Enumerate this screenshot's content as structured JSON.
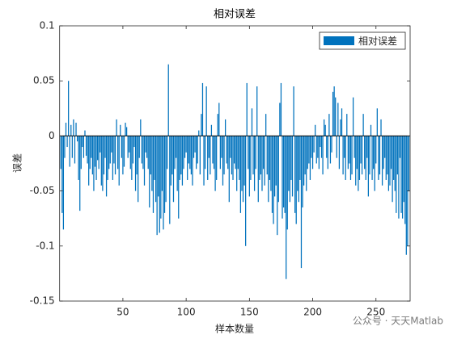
{
  "chart_data": {
    "type": "bar",
    "title": "相对误差",
    "xlabel": "样本数量",
    "ylabel": "误差",
    "legend": {
      "position": "upper right"
    },
    "watermark": "公众号 · 天天Matlab",
    "xlim": [
      0,
      277
    ],
    "xticks": [
      50,
      100,
      150,
      200,
      250
    ],
    "ylim": [
      -0.15,
      0.1
    ],
    "yticks": [
      -0.15,
      -0.1,
      -0.05,
      0,
      0.05,
      0.1
    ],
    "x": [
      1,
      2,
      3,
      4,
      5,
      6,
      7,
      8,
      9,
      10,
      11,
      12,
      13,
      14,
      15,
      16,
      17,
      18,
      19,
      20,
      21,
      22,
      23,
      24,
      25,
      26,
      27,
      28,
      29,
      30,
      31,
      32,
      33,
      34,
      35,
      36,
      37,
      38,
      39,
      40,
      41,
      42,
      43,
      44,
      45,
      46,
      47,
      48,
      49,
      50,
      51,
      52,
      53,
      54,
      55,
      56,
      57,
      58,
      59,
      60,
      61,
      62,
      63,
      64,
      65,
      66,
      67,
      68,
      69,
      70,
      71,
      72,
      73,
      74,
      75,
      76,
      77,
      78,
      79,
      80,
      81,
      82,
      83,
      84,
      85,
      86,
      87,
      88,
      89,
      90,
      91,
      92,
      93,
      94,
      95,
      96,
      97,
      98,
      99,
      100,
      101,
      102,
      103,
      104,
      105,
      106,
      107,
      108,
      109,
      110,
      111,
      112,
      113,
      114,
      115,
      116,
      117,
      118,
      119,
      120,
      121,
      122,
      123,
      124,
      125,
      126,
      127,
      128,
      129,
      130,
      131,
      132,
      133,
      134,
      135,
      136,
      137,
      138,
      139,
      140,
      141,
      142,
      143,
      144,
      145,
      146,
      147,
      148,
      149,
      150,
      151,
      152,
      153,
      154,
      155,
      156,
      157,
      158,
      159,
      160,
      161,
      162,
      163,
      164,
      165,
      166,
      167,
      168,
      169,
      170,
      171,
      172,
      173,
      174,
      175,
      176,
      177,
      178,
      179,
      180,
      181,
      182,
      183,
      184,
      185,
      186,
      187,
      188,
      189,
      190,
      191,
      192,
      193,
      194,
      195,
      196,
      197,
      198,
      199,
      200,
      201,
      202,
      203,
      204,
      205,
      206,
      207,
      208,
      209,
      210,
      211,
      212,
      213,
      214,
      215,
      216,
      217,
      218,
      219,
      220,
      221,
      222,
      223,
      224,
      225,
      226,
      227,
      228,
      229,
      230,
      231,
      232,
      233,
      234,
      235,
      236,
      237,
      238,
      239,
      240,
      241,
      242,
      243,
      244,
      245,
      246,
      247,
      248,
      249,
      250,
      251,
      252,
      253,
      254,
      255,
      256,
      257,
      258,
      259,
      260,
      261,
      262,
      263,
      264,
      265,
      266,
      267,
      268,
      269,
      270,
      271,
      272,
      273,
      274,
      275,
      276
    ],
    "series": [
      {
        "name": "相对误差",
        "color": "#0072bd",
        "values": [
          -0.03,
          -0.07,
          -0.085,
          -0.02,
          0.012,
          -0.01,
          0.05,
          -0.028,
          0.01,
          -0.02,
          0.015,
          -0.025,
          0.012,
          -0.005,
          -0.04,
          -0.068,
          -0.03,
          -0.01,
          -0.02,
          0.005,
          -0.018,
          -0.025,
          -0.045,
          -0.03,
          -0.02,
          -0.035,
          -0.05,
          -0.028,
          -0.04,
          -0.022,
          -0.03,
          -0.015,
          -0.045,
          -0.05,
          -0.035,
          -0.02,
          -0.055,
          -0.04,
          -0.03,
          -0.025,
          -0.015,
          -0.04,
          -0.025,
          -0.035,
          0.015,
          -0.03,
          -0.045,
          0.01,
          -0.02,
          -0.035,
          -0.028,
          0.012,
          0.008,
          -0.02,
          -0.015,
          -0.03,
          -0.04,
          -0.025,
          -0.01,
          -0.05,
          -0.035,
          -0.06,
          -0.02,
          0.015,
          -0.025,
          -0.03,
          -0.045,
          -0.015,
          -0.02,
          -0.03,
          -0.065,
          -0.035,
          -0.05,
          -0.07,
          -0.04,
          -0.06,
          -0.09,
          -0.055,
          -0.088,
          -0.075,
          -0.05,
          -0.085,
          -0.07,
          -0.06,
          -0.03,
          0.065,
          -0.08,
          -0.045,
          -0.035,
          -0.06,
          -0.03,
          -0.02,
          -0.05,
          -0.075,
          -0.04,
          -0.035,
          -0.045,
          -0.03,
          -0.02,
          -0.015,
          -0.04,
          -0.025,
          -0.03,
          -0.035,
          -0.045,
          -0.02,
          -0.015,
          -0.03,
          -0.025,
          0.005,
          -0.035,
          0.02,
          0.048,
          -0.045,
          -0.03,
          0.045,
          -0.04,
          -0.02,
          -0.035,
          0.01,
          -0.025,
          -0.03,
          -0.05,
          -0.04,
          0.02,
          0.03,
          -0.03,
          -0.02,
          -0.045,
          -0.035,
          0.015,
          -0.025,
          -0.03,
          -0.06,
          -0.02,
          -0.035,
          -0.04,
          -0.025,
          -0.03,
          -0.05,
          -0.03,
          -0.04,
          -0.07,
          -0.05,
          -0.06,
          -0.045,
          -0.1,
          0.048,
          -0.03,
          -0.055,
          -0.04,
          0.025,
          -0.035,
          -0.05,
          -0.03,
          0.045,
          -0.06,
          -0.04,
          -0.035,
          -0.05,
          -0.03,
          -0.045,
          0.02,
          -0.035,
          -0.06,
          -0.04,
          -0.05,
          -0.07,
          -0.08,
          -0.055,
          -0.045,
          -0.09,
          -0.06,
          0.03,
          0.048,
          -0.075,
          -0.065,
          -0.07,
          -0.13,
          -0.085,
          -0.05,
          -0.06,
          -0.04,
          -0.055,
          0.045,
          -0.07,
          -0.08,
          -0.05,
          -0.06,
          -0.04,
          -0.12,
          -0.065,
          -0.045,
          -0.035,
          -0.05,
          -0.03,
          -0.025,
          -0.04,
          -0.02,
          -0.03,
          -0.015,
          0.01,
          -0.025,
          -0.02,
          -0.03,
          -0.01,
          -0.02,
          -0.035,
          0.015,
          0.01,
          -0.02,
          -0.03,
          0.02,
          -0.025,
          -0.015,
          0.04,
          0.045,
          0.035,
          -0.02,
          0.03,
          -0.03,
          0.015,
          0.025,
          -0.035,
          -0.02,
          -0.04,
          0.02,
          -0.03,
          -0.025,
          -0.04,
          -0.035,
          0.035,
          -0.02,
          -0.045,
          -0.03,
          -0.05,
          -0.04,
          -0.025,
          -0.035,
          0.02,
          -0.03,
          -0.04,
          -0.02,
          -0.055,
          -0.035,
          0.01,
          -0.04,
          -0.03,
          -0.05,
          -0.025,
          0.025,
          -0.04,
          -0.035,
          0.015,
          -0.045,
          -0.03,
          -0.02,
          -0.04,
          -0.035,
          -0.05,
          -0.045,
          -0.03,
          -0.06,
          -0.04,
          -0.05,
          -0.07,
          -0.035,
          -0.075,
          -0.02,
          -0.07,
          -0.075,
          -0.06,
          -0.08,
          -0.108,
          -0.1,
          -0.05
        ]
      }
    ]
  }
}
